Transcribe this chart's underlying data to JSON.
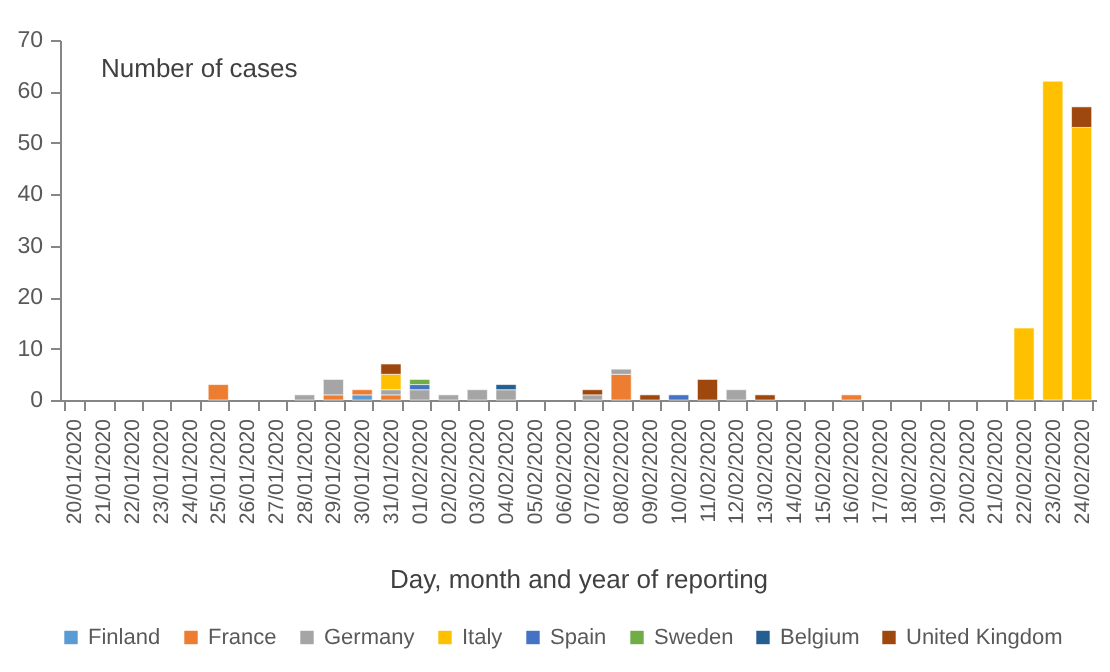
{
  "chart_data": {
    "type": "bar",
    "stacked": true,
    "ylabel": "Number of cases",
    "xlabel": "Day, month and year of reporting",
    "categories": [
      "20/01/2020",
      "21/01/2020",
      "22/01/2020",
      "23/01/2020",
      "24/01/2020",
      "25/01/2020",
      "26/01/2020",
      "27/01/2020",
      "28/01/2020",
      "29/01/2020",
      "30/01/2020",
      "31/01/2020",
      "01/02/2020",
      "02/02/2020",
      "03/02/2020",
      "04/02/2020",
      "05/02/2020",
      "06/02/2020",
      "07/02/2020",
      "08/02/2020",
      "09/02/2020",
      "10/02/2020",
      "11/02/2020",
      "12/02/2020",
      "13/02/2020",
      "14/02/2020",
      "15/02/2020",
      "16/02/2020",
      "17/02/2020",
      "18/02/2020",
      "19/02/2020",
      "20/02/2020",
      "21/02/2020",
      "22/02/2020",
      "23/02/2020",
      "24/02/2020"
    ],
    "series": [
      {
        "name": "Finland",
        "color": "#5b9bd5",
        "values": [
          0,
          0,
          0,
          0,
          0,
          0,
          0,
          0,
          0,
          0,
          1,
          0,
          0,
          0,
          0,
          0,
          0,
          0,
          0,
          0,
          0,
          0,
          0,
          0,
          0,
          0,
          0,
          0,
          0,
          0,
          0,
          0,
          0,
          0,
          0,
          0
        ]
      },
      {
        "name": "France",
        "color": "#ed7d31",
        "values": [
          0,
          0,
          0,
          0,
          0,
          3,
          0,
          0,
          0,
          1,
          1,
          1,
          0,
          0,
          0,
          0,
          0,
          0,
          0,
          5,
          0,
          0,
          0,
          0,
          0,
          0,
          0,
          1,
          0,
          0,
          0,
          0,
          0,
          0,
          0,
          0
        ]
      },
      {
        "name": "Germany",
        "color": "#a5a5a5",
        "values": [
          0,
          0,
          0,
          0,
          0,
          0,
          0,
          0,
          1,
          3,
          0,
          1,
          2,
          1,
          2,
          2,
          0,
          0,
          1,
          1,
          0,
          0,
          0,
          2,
          0,
          0,
          0,
          0,
          0,
          0,
          0,
          0,
          0,
          0,
          0,
          0
        ]
      },
      {
        "name": "Italy",
        "color": "#ffc000",
        "values": [
          0,
          0,
          0,
          0,
          0,
          0,
          0,
          0,
          0,
          0,
          0,
          3,
          0,
          0,
          0,
          0,
          0,
          0,
          0,
          0,
          0,
          0,
          0,
          0,
          0,
          0,
          0,
          0,
          0,
          0,
          0,
          0,
          0,
          14,
          62,
          53
        ]
      },
      {
        "name": "Spain",
        "color": "#4472c4",
        "values": [
          0,
          0,
          0,
          0,
          0,
          0,
          0,
          0,
          0,
          0,
          0,
          0,
          1,
          0,
          0,
          0,
          0,
          0,
          0,
          0,
          0,
          1,
          0,
          0,
          0,
          0,
          0,
          0,
          0,
          0,
          0,
          0,
          0,
          0,
          0,
          0
        ]
      },
      {
        "name": "Sweden",
        "color": "#70ad47",
        "values": [
          0,
          0,
          0,
          0,
          0,
          0,
          0,
          0,
          0,
          0,
          0,
          0,
          1,
          0,
          0,
          0,
          0,
          0,
          0,
          0,
          0,
          0,
          0,
          0,
          0,
          0,
          0,
          0,
          0,
          0,
          0,
          0,
          0,
          0,
          0,
          0
        ]
      },
      {
        "name": "Belgium",
        "color": "#255e91",
        "values": [
          0,
          0,
          0,
          0,
          0,
          0,
          0,
          0,
          0,
          0,
          0,
          0,
          0,
          0,
          0,
          1,
          0,
          0,
          0,
          0,
          0,
          0,
          0,
          0,
          0,
          0,
          0,
          0,
          0,
          0,
          0,
          0,
          0,
          0,
          0,
          0
        ]
      },
      {
        "name": "United Kingdom",
        "color": "#9e480e",
        "values": [
          0,
          0,
          0,
          0,
          0,
          0,
          0,
          0,
          0,
          0,
          0,
          2,
          0,
          0,
          0,
          0,
          0,
          0,
          1,
          0,
          1,
          0,
          4,
          0,
          1,
          0,
          0,
          0,
          0,
          0,
          0,
          0,
          0,
          0,
          0,
          4
        ]
      }
    ],
    "ylim": [
      0,
      70
    ],
    "yticks": [
      0,
      10,
      20,
      30,
      40,
      50,
      60,
      70
    ],
    "legend": "bottom"
  }
}
